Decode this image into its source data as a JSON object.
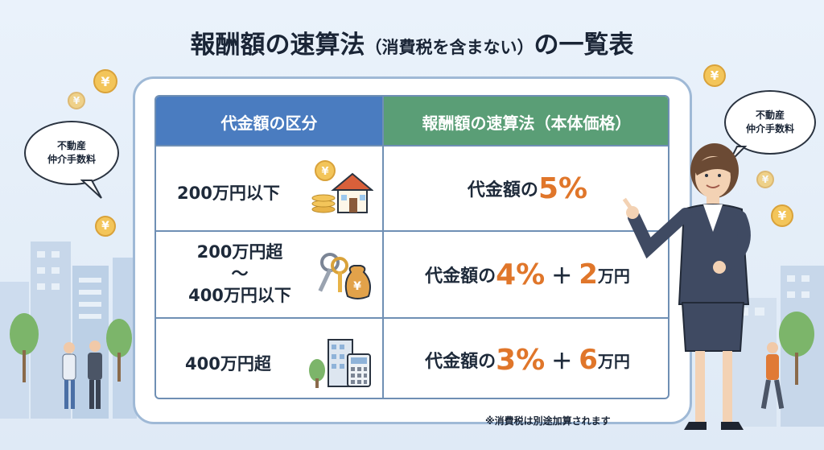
{
  "title": {
    "main_before": "報酬額の速算法",
    "sub": "（消費税を含まない）",
    "main_after": "の一覧表"
  },
  "table": {
    "header_left": "代金額の区分",
    "header_right": "報酬額の速算法（本体価格）",
    "rows": [
      {
        "range_line1": "200万円以下",
        "formula_prefix": "代金額の",
        "percent": "5%",
        "plus": "",
        "amount": "",
        "unit": ""
      },
      {
        "range_line1": "200万円超",
        "range_line2": "〜",
        "range_line3": "400万円以下",
        "formula_prefix": "代金額の",
        "percent": "4%",
        "plus": "＋",
        "amount": "2",
        "unit": "万円"
      },
      {
        "range_line1": "400万円超",
        "formula_prefix": "代金額の",
        "percent": "3%",
        "plus": "＋",
        "amount": "6",
        "unit": "万円"
      }
    ]
  },
  "bubbles": {
    "left": {
      "line1": "不動産",
      "line2": "仲介手数料"
    },
    "right": {
      "line1": "不動産",
      "line2": "仲介手数料"
    }
  },
  "coin_symbol": "¥",
  "footnote": "※消費税は別途加算されます",
  "colors": {
    "header_left": "#4a7cc0",
    "header_right": "#5a9e76",
    "accent": "#e0762a"
  }
}
